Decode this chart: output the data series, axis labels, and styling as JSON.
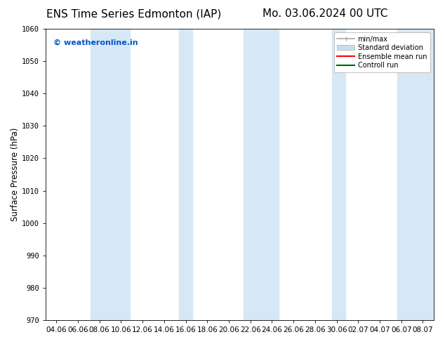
{
  "title_left": "ENS Time Series Edmonton (IAP)",
  "title_right": "Mo. 03.06.2024 00 UTC",
  "ylabel": "Surface Pressure (hPa)",
  "ylim": [
    970,
    1060
  ],
  "yticks": [
    970,
    980,
    990,
    1000,
    1010,
    1020,
    1030,
    1040,
    1050,
    1060
  ],
  "x_tick_labels": [
    "04.06",
    "06.06",
    "08.06",
    "10.06",
    "12.06",
    "14.06",
    "16.06",
    "18.06",
    "20.06",
    "22.06",
    "24.06",
    "26.06",
    "28.06",
    "30.06",
    "02.07",
    "04.07",
    "06.07",
    "08.07"
  ],
  "watermark": "© weatheronline.in",
  "watermark_color": "#0055cc",
  "bg_color": "#ffffff",
  "plot_bg_color": "#ffffff",
  "shaded_bands_color": "#d6e8f5",
  "legend_items": [
    "min/max",
    "Standard deviation",
    "Ensemble mean run",
    "Controll run"
  ],
  "legend_line_color": "#aaaaaa",
  "legend_std_color": "#c8dced",
  "legend_mean_color": "#ff0000",
  "legend_ctrl_color": "#006600",
  "title_fontsize": 11,
  "tick_label_fontsize": 7.5,
  "ylabel_fontsize": 8.5,
  "watermark_fontsize": 8
}
